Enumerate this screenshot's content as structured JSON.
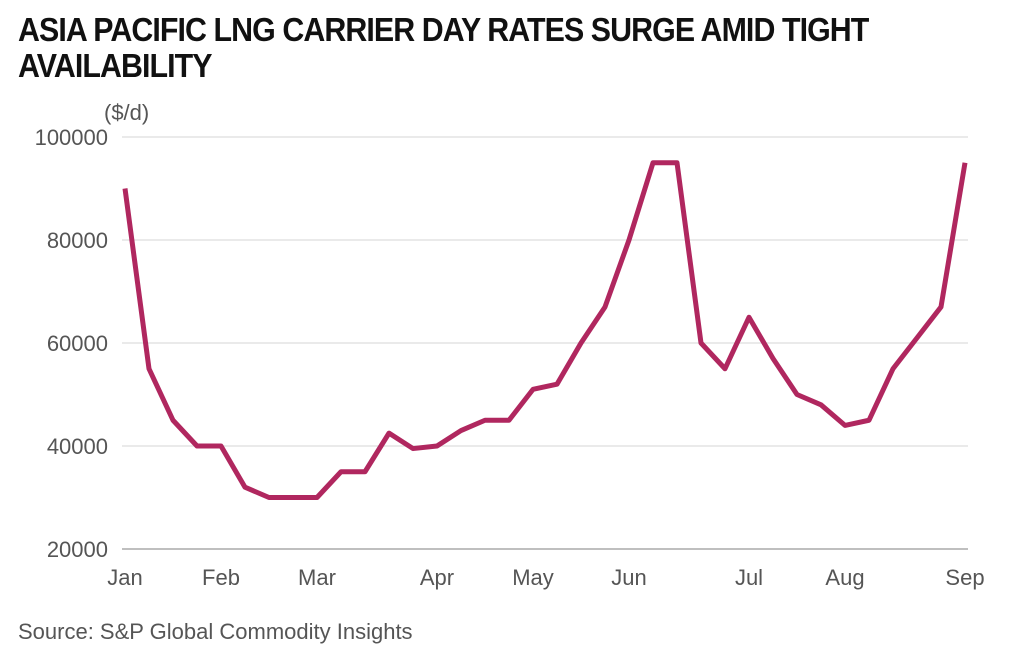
{
  "chart_data": {
    "type": "line",
    "title": "ASIA PACIFIC LNG CARRIER DAY RATES SURGE AMID TIGHT AVAILABILITY",
    "y_label": "($/d)",
    "source": "Source: S&P Global Commodity Insights",
    "categories": [
      "Jan",
      null,
      null,
      null,
      "Feb",
      null,
      null,
      null,
      "Mar",
      null,
      null,
      null,
      null,
      "Apr",
      null,
      null,
      null,
      "May",
      null,
      null,
      null,
      "Jun",
      null,
      null,
      null,
      null,
      "Jul",
      null,
      null,
      null,
      "Aug",
      null,
      null,
      null,
      null,
      "Sep"
    ],
    "series": [
      {
        "color": "#b0275f",
        "values": [
          90000,
          55000,
          45000,
          40000,
          40000,
          32000,
          30000,
          30000,
          30000,
          35000,
          35000,
          42500,
          39500,
          40000,
          43000,
          45000,
          45000,
          51000,
          52000,
          60000,
          67000,
          80000,
          95000,
          95000,
          60000,
          55000,
          65000,
          57000,
          50000,
          48000,
          44000,
          45000,
          55000,
          61000,
          67000,
          95000
        ]
      }
    ],
    "ylim": [
      20000,
      100000
    ],
    "yticks": [
      20000,
      40000,
      60000,
      80000,
      100000
    ],
    "grid": true
  }
}
